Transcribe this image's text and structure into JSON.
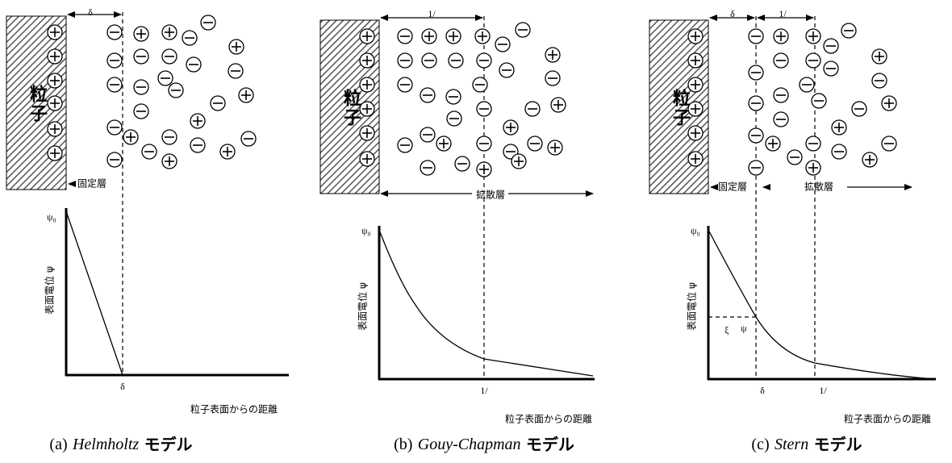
{
  "panels": [
    {
      "particle": "粒子",
      "delta_top": "δ",
      "fixed_layer": "固定層",
      "psi0": "ψ₀",
      "y_label": "表面電位 ψ",
      "delta_axis": "δ",
      "x_label": "粒子表面からの距離",
      "caption": {
        "label": "(a)",
        "name": "Helmholtz",
        "suffix": "モデル"
      }
    },
    {
      "particle": "粒子",
      "debye_top": "1/",
      "diffuse_layer": "拡散層",
      "psi0": "ψ₀",
      "y_label": "表面電位 ψ",
      "debye_axis": "1/",
      "x_label": "粒子表面からの距離",
      "caption": {
        "label": "(b)",
        "name": "Gouy-Chapman",
        "suffix": "モデル"
      }
    },
    {
      "particle": "粒子",
      "delta_top": "δ",
      "debye_top": "1/",
      "fixed_layer": "固定層",
      "diffuse_layer": "拡散層",
      "psi0": "ψ₀",
      "y_label": "表面電位 ψ",
      "zeta": "ξ",
      "psi": "ψ",
      "delta_axis": "δ",
      "debye_axis": "1/",
      "x_label": "粒子表面からの距離",
      "caption": {
        "label": "(c)",
        "name": "Stern",
        "suffix": "モデル"
      }
    }
  ]
}
